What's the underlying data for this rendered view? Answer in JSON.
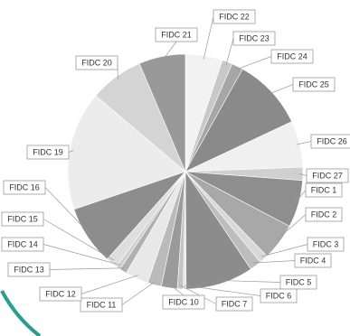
{
  "chart_data": {
    "type": "pie",
    "start_angle_deg": 0,
    "direction": "clockwise",
    "slices": [
      {
        "label": "FIDC 22",
        "value": 5.1,
        "color": "#f2f2f2"
      },
      {
        "label": "FIDC 23",
        "value": 1.4,
        "color": "#c8c8c8"
      },
      {
        "label": "FIDC 24",
        "value": 1.6,
        "color": "#a6a6a6"
      },
      {
        "label": "FIDC 25",
        "value": 9.9,
        "color": "#8a8a8a"
      },
      {
        "label": "FIDC 26",
        "value": 6.4,
        "color": "#f0f0f0"
      },
      {
        "label": "FIDC 27",
        "value": 1.8,
        "color": "#d0d0d0"
      },
      {
        "label": "FIDC 1",
        "value": 6.5,
        "color": "#8e8e8e"
      },
      {
        "label": "FIDC 2",
        "value": 5.1,
        "color": "#a8a8a8"
      },
      {
        "label": "FIDC 3",
        "value": 1.2,
        "color": "#d8d8d8"
      },
      {
        "label": "FIDC 4",
        "value": 1.6,
        "color": "#bdbdbd"
      },
      {
        "label": "FIDC 5",
        "value": 9.3,
        "color": "#8c8c8c"
      },
      {
        "label": "FIDC 6",
        "value": 0.4,
        "color": "#e6e6e6"
      },
      {
        "label": "FIDC 7",
        "value": 0.8,
        "color": "#c4c4c4"
      },
      {
        "label": "FIDC 10",
        "value": 2.2,
        "color": "#9a9a9a"
      },
      {
        "label": "FIDC 11",
        "value": 1.9,
        "color": "#bababa"
      },
      {
        "label": "FIDC 12",
        "value": 3.2,
        "color": "#e8e8e8"
      },
      {
        "label": "FIDC 13",
        "value": 1.0,
        "color": "#b0b0b0"
      },
      {
        "label": "FIDC 14",
        "value": 0.6,
        "color": "#cfcfcf"
      },
      {
        "label": "FIDC 15",
        "value": 1.6,
        "color": "#dedede"
      },
      {
        "label": "FIDC 16",
        "value": 8.2,
        "color": "#8d8d8d"
      },
      {
        "label": "FIDC 19",
        "value": 16.4,
        "color": "#ececec"
      },
      {
        "label": "FIDC 20",
        "value": 7.4,
        "color": "#d4d4d4"
      },
      {
        "label": "FIDC 21",
        "value": 6.4,
        "color": "#999999"
      }
    ],
    "legend": "none"
  }
}
